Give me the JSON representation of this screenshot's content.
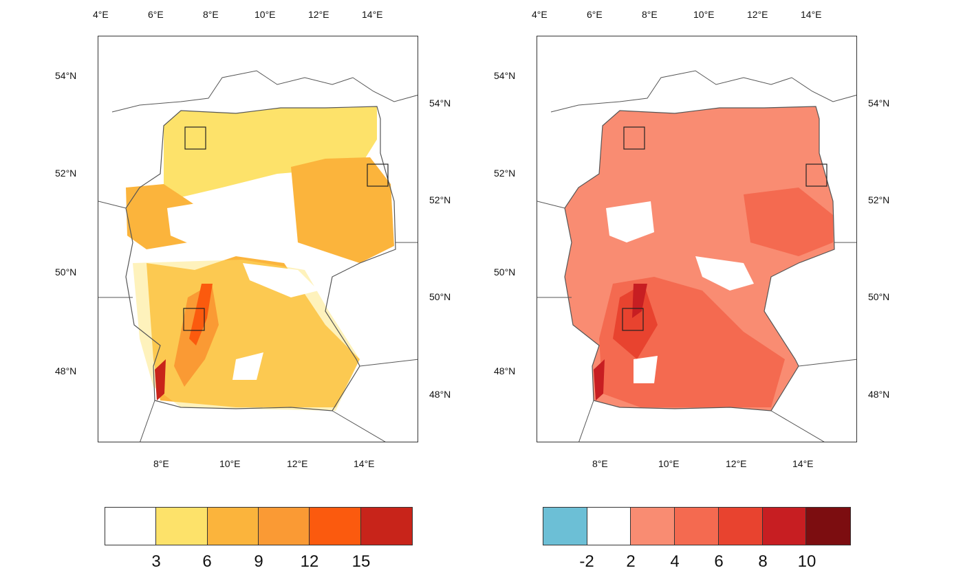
{
  "maps": [
    {
      "id": "left",
      "top_lon_labels": [
        "4°E",
        "6°E",
        "8°E",
        "10°E",
        "12°E",
        "14°E"
      ],
      "bottom_lon_labels": [
        "8°E",
        "10°E",
        "12°E",
        "14°E"
      ],
      "left_lat_labels": [
        "54°N",
        "52°N",
        "50°N",
        "48°N"
      ],
      "right_lat_labels": [
        "54°N",
        "52°N",
        "50°N",
        "48°N"
      ],
      "colors": [
        "#ffffff",
        "#fde26a",
        "#fbb43c",
        "#fa9a34",
        "#fb5a0e",
        "#c8241a"
      ]
    },
    {
      "id": "right",
      "top_lon_labels": [
        "4°E",
        "6°E",
        "8°E",
        "10°E",
        "12°E",
        "14°E"
      ],
      "bottom_lon_labels": [
        "8°E",
        "10°E",
        "12°E",
        "14°E"
      ],
      "left_lat_labels": [
        "54°N",
        "52°N",
        "50°N",
        "48°N"
      ],
      "right_lat_labels": [
        "54°N",
        "52°N",
        "50°N",
        "48°N"
      ],
      "colors": [
        "#6cbfd6",
        "#ffffff",
        "#f98c72",
        "#f46a50",
        "#e8432f",
        "#c71e22",
        "#7c0d10"
      ]
    }
  ],
  "colorbars": [
    {
      "id": "left",
      "colors": [
        "#ffffff",
        "#fde26a",
        "#fbb43c",
        "#fa9a34",
        "#fb5a0e",
        "#c8241a"
      ],
      "labels": [
        "3",
        "6",
        "9",
        "12",
        "15"
      ]
    },
    {
      "id": "right",
      "colors": [
        "#6cbfd6",
        "#ffffff",
        "#f98c72",
        "#f46a50",
        "#e8432f",
        "#c71e22",
        "#7c0d10"
      ],
      "labels": [
        "-2",
        "2",
        "4",
        "6",
        "8",
        "10"
      ]
    }
  ]
}
